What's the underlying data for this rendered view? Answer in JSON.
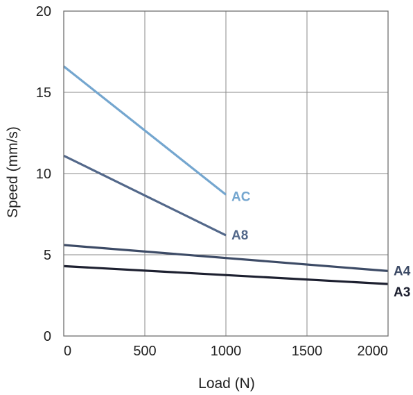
{
  "chart_data": {
    "type": "line",
    "title": "",
    "xlabel": "Load (N)",
    "ylabel": "Speed (mm/s)",
    "xlim": [
      0,
      2000
    ],
    "ylim": [
      0,
      20
    ],
    "xticks": [
      0,
      500,
      1000,
      1500,
      2000
    ],
    "yticks": [
      0,
      5,
      10,
      15,
      20
    ],
    "xtick_labels": [
      "0",
      "500",
      "1000",
      "1500",
      "2000"
    ],
    "ytick_labels": [
      "0",
      "5",
      "10",
      "15",
      "20"
    ],
    "grid": true,
    "legend": "none",
    "series": [
      {
        "name": "AC",
        "color": "#74a6cf",
        "x": [
          0,
          1000
        ],
        "values": [
          16.6,
          8.7
        ]
      },
      {
        "name": "A8",
        "color": "#53688a",
        "x": [
          0,
          1000
        ],
        "values": [
          11.1,
          6.2
        ]
      },
      {
        "name": "A4",
        "color": "#3d4b66",
        "x": [
          0,
          2000
        ],
        "values": [
          5.6,
          4.0
        ]
      },
      {
        "name": "A3",
        "color": "#1d2030",
        "x": [
          0,
          2000
        ],
        "values": [
          4.3,
          3.2
        ]
      }
    ]
  }
}
